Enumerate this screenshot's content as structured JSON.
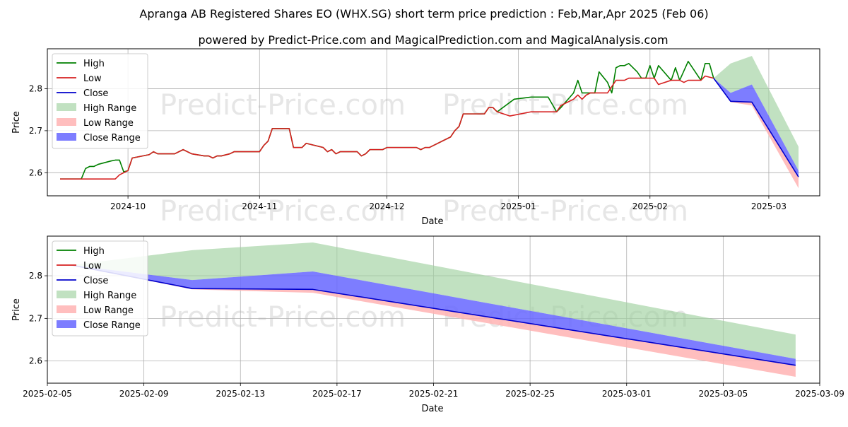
{
  "title": "Apranga AB Registered Shares EO (WHX.SG) short term price prediction : Feb,Mar,Apr 2025 (Feb 06)",
  "subtitle": "powered by Predict-Price.com and MagicalPrediction.com and MagicalAnalysis.com",
  "watermark": "Predict-Price.com",
  "legend": [
    "High",
    "Low",
    "Close",
    "High Range",
    "Low Range",
    "Close Range"
  ],
  "colors": {
    "high": "#008000",
    "low": "#d62020",
    "close": "#0000cc",
    "high_range": "#9fd19f",
    "low_range": "#ffb3b3",
    "close_range": "#6666ff"
  },
  "chart_data": [
    {
      "type": "line",
      "xlabel": "Date",
      "ylabel": "Price",
      "xlim": [
        "2024-09-12",
        "2025-03-13"
      ],
      "ylim": [
        2.545,
        2.895
      ],
      "grid": true,
      "legend_position": "top-left",
      "x_ticks": [
        "2024-10",
        "2024-11",
        "2024-12",
        "2025-01",
        "2025-02",
        "2025-03"
      ],
      "y_ticks": [
        "2.6",
        "2.7",
        "2.8"
      ],
      "series": [
        {
          "name": "High",
          "points": [
            [
              "2024-09-15",
              2.585
            ],
            [
              "2024-09-20",
              2.585
            ],
            [
              "2024-09-21",
              2.61
            ],
            [
              "2024-09-22",
              2.615
            ],
            [
              "2024-09-23",
              2.615
            ],
            [
              "2024-09-24",
              2.62
            ],
            [
              "2024-09-27",
              2.628
            ],
            [
              "2024-09-28",
              2.63
            ],
            [
              "2024-09-29",
              2.63
            ],
            [
              "2024-09-30",
              2.602
            ],
            [
              "2024-10-01",
              2.605
            ],
            [
              "2024-10-02",
              2.635
            ],
            [
              "2024-10-06",
              2.643
            ],
            [
              "2024-10-07",
              2.65
            ],
            [
              "2024-10-08",
              2.645
            ],
            [
              "2024-10-12",
              2.645
            ],
            [
              "2024-10-14",
              2.655
            ],
            [
              "2024-10-16",
              2.645
            ],
            [
              "2024-10-19",
              2.64
            ],
            [
              "2024-10-20",
              2.64
            ],
            [
              "2024-10-21",
              2.635
            ],
            [
              "2024-10-22",
              2.64
            ],
            [
              "2024-10-23",
              2.64
            ],
            [
              "2024-10-25",
              2.645
            ],
            [
              "2024-10-26",
              2.65
            ],
            [
              "2024-11-01",
              2.65
            ],
            [
              "2024-11-02",
              2.665
            ],
            [
              "2024-11-03",
              2.675
            ],
            [
              "2024-11-04",
              2.705
            ],
            [
              "2024-11-08",
              2.705
            ],
            [
              "2024-11-09",
              2.66
            ],
            [
              "2024-11-11",
              2.66
            ],
            [
              "2024-11-12",
              2.67
            ],
            [
              "2024-11-16",
              2.66
            ],
            [
              "2024-11-17",
              2.65
            ],
            [
              "2024-11-18",
              2.655
            ],
            [
              "2024-11-19",
              2.645
            ],
            [
              "2024-11-20",
              2.65
            ],
            [
              "2024-11-24",
              2.65
            ],
            [
              "2024-11-25",
              2.64
            ],
            [
              "2024-11-26",
              2.645
            ],
            [
              "2024-11-27",
              2.655
            ],
            [
              "2024-11-30",
              2.655
            ],
            [
              "2024-12-01",
              2.66
            ],
            [
              "2024-12-08",
              2.66
            ],
            [
              "2024-12-09",
              2.655
            ],
            [
              "2024-12-10",
              2.66
            ],
            [
              "2024-12-11",
              2.66
            ],
            [
              "2024-12-15",
              2.68
            ],
            [
              "2024-12-16",
              2.685
            ],
            [
              "2024-12-17",
              2.7
            ],
            [
              "2024-12-18",
              2.71
            ],
            [
              "2024-12-19",
              2.74
            ],
            [
              "2024-12-24",
              2.74
            ],
            [
              "2024-12-25",
              2.755
            ],
            [
              "2024-12-26",
              2.755
            ],
            [
              "2024-12-27",
              2.745
            ],
            [
              "2024-12-31",
              2.775
            ],
            [
              "2025-01-04",
              2.78
            ],
            [
              "2025-01-08",
              2.78
            ],
            [
              "2025-01-10",
              2.745
            ],
            [
              "2025-01-11",
              2.755
            ],
            [
              "2025-01-14",
              2.79
            ],
            [
              "2025-01-15",
              2.82
            ],
            [
              "2025-01-16",
              2.79
            ],
            [
              "2025-01-17",
              2.79
            ],
            [
              "2025-01-19",
              2.79
            ],
            [
              "2025-01-20",
              2.84
            ],
            [
              "2025-01-22",
              2.815
            ],
            [
              "2025-01-23",
              2.79
            ],
            [
              "2025-01-24",
              2.85
            ],
            [
              "2025-01-25",
              2.855
            ],
            [
              "2025-01-26",
              2.855
            ],
            [
              "2025-01-27",
              2.86
            ],
            [
              "2025-01-29",
              2.84
            ],
            [
              "2025-01-30",
              2.825
            ],
            [
              "2025-01-31",
              2.825
            ],
            [
              "2025-02-01",
              2.855
            ],
            [
              "2025-02-02",
              2.825
            ],
            [
              "2025-02-03",
              2.855
            ],
            [
              "2025-02-06",
              2.82
            ],
            [
              "2025-02-07",
              2.85
            ],
            [
              "2025-02-08",
              2.82
            ],
            [
              "2025-02-10",
              2.865
            ],
            [
              "2025-02-13",
              2.82
            ],
            [
              "2025-02-14",
              2.86
            ],
            [
              "2025-02-15",
              2.86
            ],
            [
              "2025-02-16",
              2.825
            ]
          ]
        },
        {
          "name": "Low",
          "points": [
            [
              "2024-09-15",
              2.585
            ],
            [
              "2024-09-28",
              2.585
            ],
            [
              "2024-09-29",
              2.595
            ],
            [
              "2024-09-30",
              2.6
            ],
            [
              "2024-10-01",
              2.605
            ],
            [
              "2024-10-02",
              2.635
            ],
            [
              "2024-10-06",
              2.643
            ],
            [
              "2024-10-07",
              2.65
            ],
            [
              "2024-10-08",
              2.645
            ],
            [
              "2024-10-12",
              2.645
            ],
            [
              "2024-10-14",
              2.655
            ],
            [
              "2024-10-16",
              2.645
            ],
            [
              "2024-10-19",
              2.64
            ],
            [
              "2024-10-20",
              2.64
            ],
            [
              "2024-10-21",
              2.635
            ],
            [
              "2024-10-22",
              2.64
            ],
            [
              "2024-10-23",
              2.64
            ],
            [
              "2024-10-25",
              2.645
            ],
            [
              "2024-10-26",
              2.65
            ],
            [
              "2024-11-01",
              2.65
            ],
            [
              "2024-11-02",
              2.665
            ],
            [
              "2024-11-03",
              2.675
            ],
            [
              "2024-11-04",
              2.705
            ],
            [
              "2024-11-08",
              2.705
            ],
            [
              "2024-11-09",
              2.66
            ],
            [
              "2024-11-11",
              2.66
            ],
            [
              "2024-11-12",
              2.67
            ],
            [
              "2024-11-16",
              2.66
            ],
            [
              "2024-11-17",
              2.65
            ],
            [
              "2024-11-18",
              2.655
            ],
            [
              "2024-11-19",
              2.645
            ],
            [
              "2024-11-20",
              2.65
            ],
            [
              "2024-11-24",
              2.65
            ],
            [
              "2024-11-25",
              2.64
            ],
            [
              "2024-11-26",
              2.645
            ],
            [
              "2024-11-27",
              2.655
            ],
            [
              "2024-11-30",
              2.655
            ],
            [
              "2024-12-01",
              2.66
            ],
            [
              "2024-12-08",
              2.66
            ],
            [
              "2024-12-09",
              2.655
            ],
            [
              "2024-12-10",
              2.66
            ],
            [
              "2024-12-11",
              2.66
            ],
            [
              "2024-12-15",
              2.68
            ],
            [
              "2024-12-16",
              2.685
            ],
            [
              "2024-12-17",
              2.7
            ],
            [
              "2024-12-18",
              2.71
            ],
            [
              "2024-12-19",
              2.74
            ],
            [
              "2024-12-24",
              2.74
            ],
            [
              "2024-12-25",
              2.755
            ],
            [
              "2024-12-26",
              2.755
            ],
            [
              "2024-12-27",
              2.745
            ],
            [
              "2024-12-30",
              2.735
            ],
            [
              "2025-01-04",
              2.745
            ],
            [
              "2025-01-10",
              2.745
            ],
            [
              "2025-01-11",
              2.76
            ],
            [
              "2025-01-14",
              2.775
            ],
            [
              "2025-01-15",
              2.785
            ],
            [
              "2025-01-16",
              2.775
            ],
            [
              "2025-01-17",
              2.785
            ],
            [
              "2025-01-18",
              2.79
            ],
            [
              "2025-01-22",
              2.79
            ],
            [
              "2025-01-24",
              2.82
            ],
            [
              "2025-01-26",
              2.82
            ],
            [
              "2025-01-27",
              2.825
            ],
            [
              "2025-02-02",
              2.825
            ],
            [
              "2025-02-03",
              2.81
            ],
            [
              "2025-02-06",
              2.82
            ],
            [
              "2025-02-08",
              2.82
            ],
            [
              "2025-02-09",
              2.815
            ],
            [
              "2025-02-10",
              2.82
            ],
            [
              "2025-02-13",
              2.82
            ],
            [
              "2025-02-14",
              2.83
            ],
            [
              "2025-02-16",
              2.825
            ]
          ]
        },
        {
          "name": "Close",
          "points": [
            [
              "2025-02-16",
              2.825
            ],
            [
              "2025-02-20",
              2.77
            ],
            [
              "2025-02-25",
              2.768
            ],
            [
              "2025-03-08",
              2.59
            ]
          ]
        },
        {
          "name": "High Range",
          "upper": [
            [
              "2025-02-16",
              2.825
            ],
            [
              "2025-02-20",
              2.86
            ],
            [
              "2025-02-25",
              2.878
            ],
            [
              "2025-03-08",
              2.662
            ]
          ],
          "lower": [
            [
              "2025-02-16",
              2.825
            ],
            [
              "2025-02-20",
              2.79
            ],
            [
              "2025-02-25",
              2.81
            ],
            [
              "2025-03-08",
              2.605
            ]
          ]
        },
        {
          "name": "Low Range",
          "upper": [
            [
              "2025-02-16",
              2.825
            ],
            [
              "2025-02-20",
              2.77
            ],
            [
              "2025-02-25",
              2.768
            ],
            [
              "2025-03-08",
              2.59
            ]
          ],
          "lower": [
            [
              "2025-02-16",
              2.825
            ],
            [
              "2025-02-20",
              2.768
            ],
            [
              "2025-02-25",
              2.76
            ],
            [
              "2025-03-08",
              2.563
            ]
          ]
        },
        {
          "name": "Close Range",
          "upper": [
            [
              "2025-02-16",
              2.825
            ],
            [
              "2025-02-20",
              2.79
            ],
            [
              "2025-02-25",
              2.81
            ],
            [
              "2025-03-08",
              2.605
            ]
          ],
          "lower": [
            [
              "2025-02-16",
              2.825
            ],
            [
              "2025-02-20",
              2.77
            ],
            [
              "2025-02-25",
              2.768
            ],
            [
              "2025-03-08",
              2.59
            ]
          ]
        }
      ]
    },
    {
      "type": "line",
      "xlabel": "Date",
      "ylabel": "Price",
      "xlim": [
        "2025-02-05",
        "2025-03-09"
      ],
      "ylim": [
        2.548,
        2.893
      ],
      "grid": true,
      "legend_position": "top-left",
      "x_ticks": [
        "2025-02-05",
        "2025-02-09",
        "2025-02-13",
        "2025-02-17",
        "2025-02-21",
        "2025-02-25",
        "2025-03-01",
        "2025-03-05",
        "2025-03-09"
      ],
      "y_ticks": [
        "2.6",
        "2.7",
        "2.8"
      ],
      "series": [
        {
          "name": "Close",
          "points": [
            [
              "2025-02-06",
              2.825
            ],
            [
              "2025-02-11",
              2.77
            ],
            [
              "2025-02-16",
              2.768
            ],
            [
              "2025-03-08",
              2.59
            ]
          ]
        },
        {
          "name": "High Range",
          "upper": [
            [
              "2025-02-06",
              2.825
            ],
            [
              "2025-02-11",
              2.86
            ],
            [
              "2025-02-16",
              2.878
            ],
            [
              "2025-03-08",
              2.662
            ]
          ],
          "lower": [
            [
              "2025-02-06",
              2.825
            ],
            [
              "2025-02-11",
              2.79
            ],
            [
              "2025-02-16",
              2.81
            ],
            [
              "2025-03-08",
              2.605
            ]
          ]
        },
        {
          "name": "Low Range",
          "upper": [
            [
              "2025-02-06",
              2.825
            ],
            [
              "2025-02-11",
              2.77
            ],
            [
              "2025-02-16",
              2.768
            ],
            [
              "2025-03-08",
              2.59
            ]
          ],
          "lower": [
            [
              "2025-02-06",
              2.825
            ],
            [
              "2025-02-11",
              2.768
            ],
            [
              "2025-02-16",
              2.76
            ],
            [
              "2025-03-08",
              2.563
            ]
          ]
        },
        {
          "name": "Close Range",
          "upper": [
            [
              "2025-02-06",
              2.825
            ],
            [
              "2025-02-11",
              2.79
            ],
            [
              "2025-02-16",
              2.81
            ],
            [
              "2025-03-08",
              2.605
            ]
          ],
          "lower": [
            [
              "2025-02-06",
              2.825
            ],
            [
              "2025-02-11",
              2.77
            ],
            [
              "2025-02-16",
              2.768
            ],
            [
              "2025-03-08",
              2.59
            ]
          ]
        }
      ]
    }
  ]
}
